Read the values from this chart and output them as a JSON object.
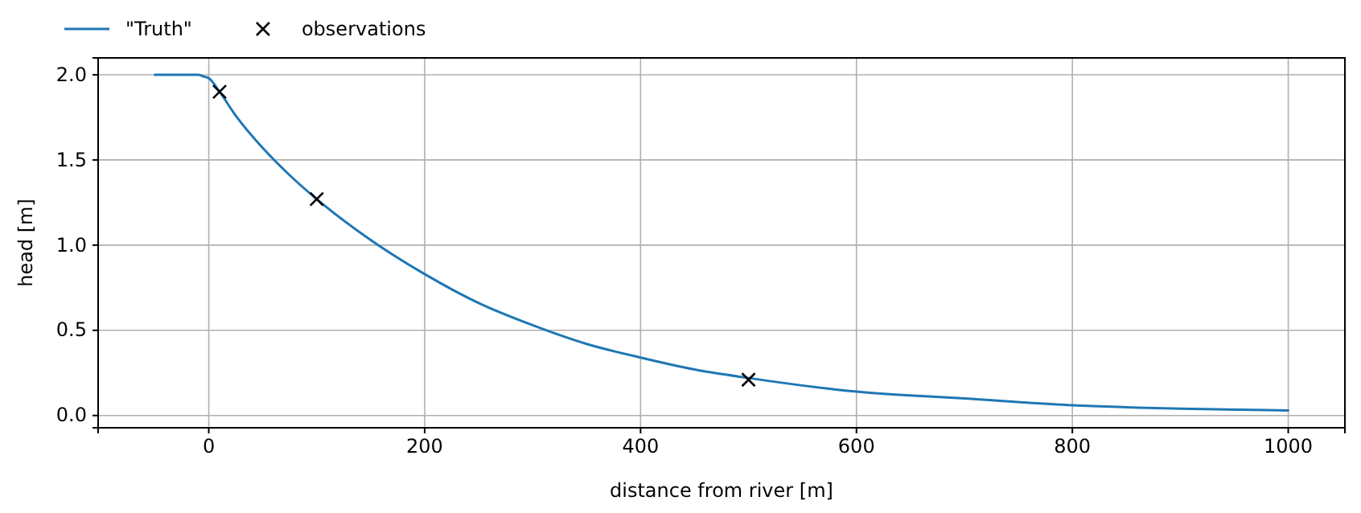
{
  "chart_data": {
    "type": "line",
    "xlabel": "distance from river [m]",
    "ylabel": "head [m]",
    "xlim": [
      -102.5,
      1052.5
    ],
    "xticks": [
      0,
      200,
      400,
      600,
      800,
      1000
    ],
    "ylim": [
      -0.072,
      2.099
    ],
    "yticks": [
      {
        "value": 0,
        "label": "0.0"
      },
      {
        "value": 0.5,
        "label": "0.5"
      },
      {
        "value": 1,
        "label": "1.0"
      },
      {
        "value": 1.5,
        "label": "1.5"
      },
      {
        "value": 2,
        "label": "2.0"
      }
    ],
    "grid": true,
    "legend": "top left",
    "series": [
      {
        "name": "\"Truth\"",
        "color": "#1f77b4",
        "marker": "none",
        "line_style": "solid",
        "x": [
          -50,
          -20,
          -10,
          -5,
          0,
          10,
          25,
          50,
          75,
          100,
          150,
          200,
          250,
          300,
          350,
          400,
          450,
          500,
          600,
          700,
          800,
          900,
          1000
        ],
        "values": [
          2.0,
          2.0,
          2.0,
          1.99,
          1.98,
          1.9,
          1.76,
          1.57,
          1.41,
          1.27,
          1.03,
          0.83,
          0.66,
          0.53,
          0.42,
          0.34,
          0.27,
          0.22,
          0.14,
          0.1,
          0.06,
          0.04,
          0.03
        ]
      },
      {
        "name": "observations",
        "type": "scatter",
        "color": "#000000",
        "marker": "cross",
        "x": [
          10,
          100,
          500
        ],
        "values": [
          1.9,
          1.27,
          0.21
        ]
      }
    ]
  }
}
